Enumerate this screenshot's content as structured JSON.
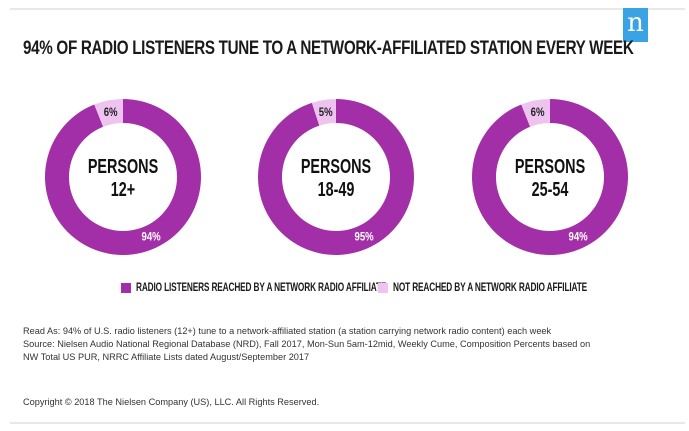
{
  "header": {
    "title": "94% OF RADIO LISTENERS TUNE TO A NETWORK-AFFILIATED STATION EVERY WEEK",
    "logo_glyph": "n"
  },
  "colors": {
    "reached": "#a32fa8",
    "not_reached": "#efc3ef",
    "logo": "#3aa3e3"
  },
  "chart_data": {
    "type": "pie",
    "subtype": "donut",
    "title": "94% OF RADIO LISTENERS TUNE TO A NETWORK-AFFILIATED STATION EVERY WEEK",
    "legend": [
      "RADIO LISTENERS REACHED BY A NETWORK RADIO AFFILIATE",
      "NOT REACHED BY A NETWORK RADIO AFFILIATE"
    ],
    "legend_position": "bottom",
    "charts": [
      {
        "label_line1": "PERSONS",
        "label_line2": "12+",
        "slices": [
          {
            "name": "RADIO LISTENERS REACHED BY A NETWORK RADIO AFFILIATE",
            "value": 94,
            "label": "94%"
          },
          {
            "name": "NOT REACHED BY A NETWORK RADIO AFFILIATE",
            "value": 6,
            "label": "6%"
          }
        ]
      },
      {
        "label_line1": "PERSONS",
        "label_line2": "18-49",
        "slices": [
          {
            "name": "RADIO LISTENERS REACHED BY A NETWORK RADIO AFFILIATE",
            "value": 95,
            "label": "95%"
          },
          {
            "name": "NOT REACHED BY A NETWORK RADIO AFFILIATE",
            "value": 5,
            "label": "5%"
          }
        ]
      },
      {
        "label_line1": "PERSONS",
        "label_line2": "25-54",
        "slices": [
          {
            "name": "RADIO LISTENERS REACHED BY A NETWORK RADIO AFFILIATE",
            "value": 94,
            "label": "94%"
          },
          {
            "name": "NOT REACHED BY A NETWORK RADIO AFFILIATE",
            "value": 6,
            "label": "6%"
          }
        ]
      }
    ]
  },
  "legend": {
    "reached": "RADIO LISTENERS REACHED BY A NETWORK RADIO AFFILIATE",
    "not_reached": "NOT REACHED BY A NETWORK RADIO AFFILIATE"
  },
  "notes": {
    "read_as": "Read As: 94% of U.S. radio listeners (12+) tune to a network-affiliated station (a station carrying network radio content) each week",
    "source_line1": "Source: Nielsen Audio National Regional Database (NRD), Fall 2017, Mon-Sun 5am-12mid, Weekly Cume, Composition Percents based on",
    "source_line2": "NW Total US PUR, NRRC Affiliate Lists dated August/September 2017"
  },
  "footer": {
    "copyright": "Copyright © 2018 The Nielsen Company (US), LLC. All Rights Reserved."
  }
}
